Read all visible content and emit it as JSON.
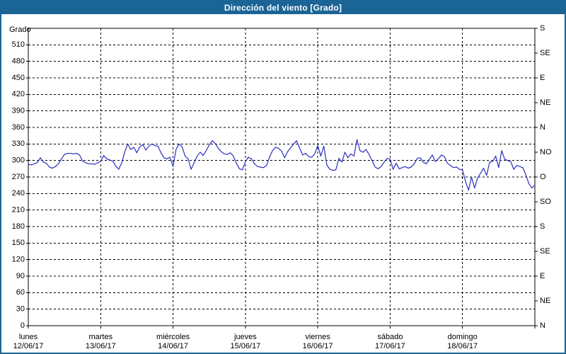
{
  "window": {
    "title": "Dirección del viento [Grado]"
  },
  "colors": {
    "frame": "#1b6496",
    "titlebar": "#1b6496",
    "line": "#2b2fbe",
    "grid": "#000000",
    "axis": "#000000",
    "text": "#000000",
    "background": "#ffffff"
  },
  "chart_data": {
    "type": "line",
    "title": "Dirección del viento [Grado]",
    "ylabel": "Grado",
    "ylim": [
      0,
      540
    ],
    "grid": true,
    "legend_position": "none",
    "y_ticks": [
      0,
      30,
      60,
      90,
      120,
      150,
      180,
      210,
      240,
      270,
      300,
      330,
      360,
      390,
      420,
      450,
      480,
      510
    ],
    "right_axis_ticks": [
      {
        "value": 540,
        "label": "S"
      },
      {
        "value": 495,
        "label": "SE"
      },
      {
        "value": 450,
        "label": "E"
      },
      {
        "value": 405,
        "label": "NE"
      },
      {
        "value": 360,
        "label": "N"
      },
      {
        "value": 315,
        "label": "NO"
      },
      {
        "value": 270,
        "label": "O"
      },
      {
        "value": 225,
        "label": "SO"
      },
      {
        "value": 180,
        "label": "S"
      },
      {
        "value": 135,
        "label": "SE"
      },
      {
        "value": 90,
        "label": "E"
      },
      {
        "value": 45,
        "label": "NE"
      },
      {
        "value": 0,
        "label": "N"
      }
    ],
    "x_categories": [
      {
        "day": "lunes",
        "date": "12/06/17"
      },
      {
        "day": "martes",
        "date": "13/06/17"
      },
      {
        "day": "miércoles",
        "date": "14/06/17"
      },
      {
        "day": "jueves",
        "date": "15/06/17"
      },
      {
        "day": "viernes",
        "date": "16/06/17"
      },
      {
        "day": "sábado",
        "date": "17/06/17"
      },
      {
        "day": "domingo",
        "date": "18/06/17"
      }
    ],
    "points_per_day": 24,
    "series": [
      {
        "name": "Dirección del viento",
        "unit": "Grado",
        "values": [
          293,
          292,
          294,
          296,
          305,
          297,
          295,
          288,
          286,
          289,
          294,
          303,
          311,
          313,
          313,
          312,
          313,
          310,
          299,
          296,
          294,
          294,
          293,
          296,
          298,
          309,
          303,
          301,
          299,
          290,
          284,
          296,
          316,
          330,
          320,
          324,
          314,
          325,
          329,
          319,
          326,
          330,
          327,
          326,
          314,
          305,
          303,
          306,
          289,
          320,
          330,
          325,
          308,
          303,
          284,
          296,
          308,
          315,
          309,
          318,
          328,
          336,
          331,
          322,
          316,
          312,
          311,
          314,
          308,
          295,
          285,
          283,
          298,
          306,
          303,
          294,
          289,
          288,
          287,
          291,
          306,
          318,
          324,
          322,
          317,
          305,
          316,
          323,
          330,
          336,
          322,
          310,
          313,
          307,
          306,
          312,
          327,
          308,
          326,
          292,
          284,
          282,
          283,
          304,
          297,
          315,
          305,
          312,
          308,
          338,
          318,
          315,
          320,
          311,
          300,
          288,
          285,
          289,
          297,
          304,
          302,
          284,
          295,
          285,
          287,
          289,
          286,
          288,
          294,
          304,
          305,
          297,
          294,
          302,
          310,
          298,
          303,
          310,
          307,
          295,
          291,
          287,
          288,
          284,
          283,
          262,
          246,
          270,
          250,
          268,
          277,
          286,
          273,
          297,
          298,
          308,
          287,
          318,
          302,
          300,
          298,
          284,
          291,
          289,
          287,
          274,
          258,
          250,
          255
        ]
      }
    ]
  }
}
